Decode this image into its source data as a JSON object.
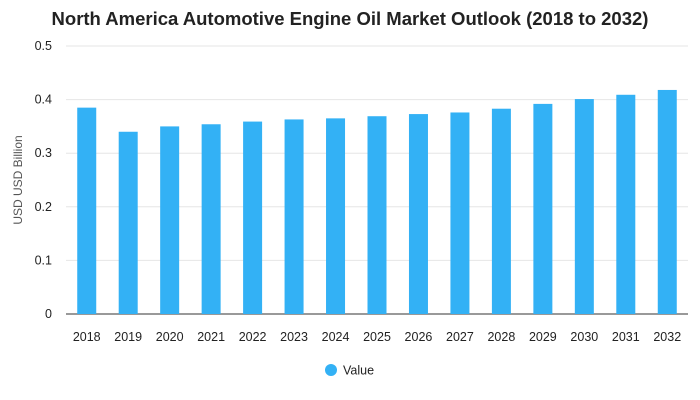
{
  "chart_data": {
    "type": "bar",
    "title": "North America Automotive Engine Oil Market Outlook (2018 to 2032)",
    "xlabel": "",
    "ylabel": "USD USD Billion",
    "ylim": [
      0,
      0.5
    ],
    "yticks": [
      "0",
      "0.1",
      "0.2",
      "0.3",
      "0.4",
      "0.5"
    ],
    "categories": [
      "2018",
      "2019",
      "2020",
      "2021",
      "2022",
      "2023",
      "2024",
      "2025",
      "2026",
      "2027",
      "2028",
      "2029",
      "2030",
      "2031",
      "2032"
    ],
    "series": [
      {
        "name": "Value",
        "values": [
          0.385,
          0.34,
          0.35,
          0.354,
          0.359,
          0.363,
          0.365,
          0.369,
          0.373,
          0.376,
          0.383,
          0.392,
          0.401,
          0.409,
          0.418
        ],
        "color": "#33b1f5"
      }
    ],
    "grid": true,
    "legend_position": "bottom-center"
  }
}
